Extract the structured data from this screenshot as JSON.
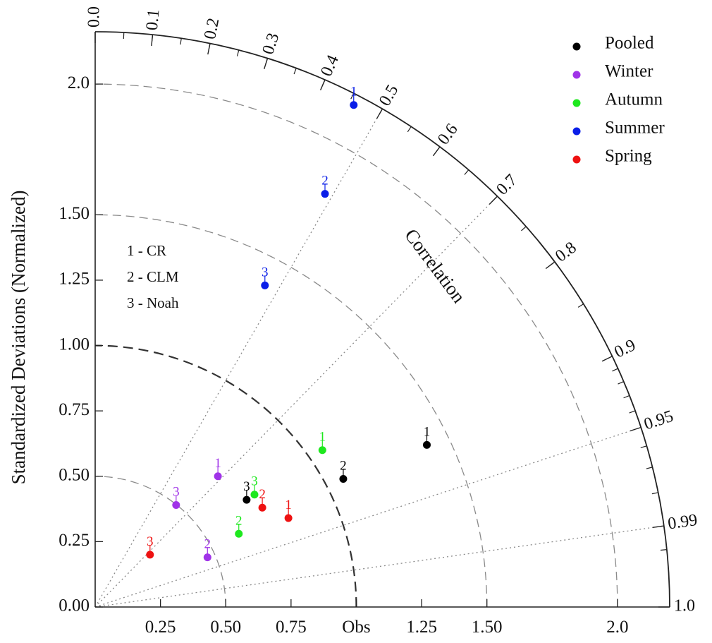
{
  "chart_data": {
    "type": "scatter",
    "subtype": "taylor-diagram",
    "ylabel": "Standardized Deviations (Normalized)",
    "arc_label": "Correlation",
    "std_ticks_left": [
      "0.00",
      "0.25",
      "0.50",
      "0.75",
      "1.00",
      "1.25",
      "1.50",
      "2.0"
    ],
    "std_ticks_bottom": [
      "0.25",
      "0.50",
      "0.75",
      "Obs",
      "1.25",
      "1.50",
      "2.0"
    ],
    "std_range": [
      0,
      2.2
    ],
    "reference_std_label": "Obs",
    "correlation_ticks": [
      "0.0",
      "0.1",
      "0.2",
      "0.3",
      "0.4",
      "0.5",
      "0.6",
      "0.7",
      "0.8",
      "0.9",
      "0.95",
      "0.99",
      "1.0"
    ],
    "std_arcs": [
      0.5,
      1.5,
      2.0
    ],
    "reference_arc": 1.0,
    "correlation_rays": [
      0.5,
      0.7,
      0.95,
      0.99
    ],
    "models_key": [
      "1 - CR",
      "2 - CLM",
      "3 - Noah"
    ],
    "legend": [
      {
        "name": "Pooled",
        "color": "#000000"
      },
      {
        "name": "Winter",
        "color": "#a033e8"
      },
      {
        "name": "Autumn",
        "color": "#1ee81e"
      },
      {
        "name": "Summer",
        "color": "#0a1ee8"
      },
      {
        "name": "Spring",
        "color": "#ee1111"
      }
    ],
    "series": [
      {
        "name": "Pooled",
        "color": "#000000",
        "points": [
          {
            "label": "1",
            "x": 1.27,
            "y": 0.62
          },
          {
            "label": "2",
            "x": 0.95,
            "y": 0.49
          },
          {
            "label": "3",
            "x": 0.58,
            "y": 0.41
          }
        ]
      },
      {
        "name": "Winter",
        "color": "#a033e8",
        "points": [
          {
            "label": "1",
            "x": 0.47,
            "y": 0.5
          },
          {
            "label": "2",
            "x": 0.43,
            "y": 0.19
          },
          {
            "label": "3",
            "x": 0.31,
            "y": 0.39
          }
        ]
      },
      {
        "name": "Autumn",
        "color": "#1ee81e",
        "points": [
          {
            "label": "1",
            "x": 0.87,
            "y": 0.6
          },
          {
            "label": "2",
            "x": 0.55,
            "y": 0.28
          },
          {
            "label": "3",
            "x": 0.61,
            "y": 0.43
          }
        ]
      },
      {
        "name": "Summer",
        "color": "#0a1ee8",
        "points": [
          {
            "label": "1",
            "x": 0.99,
            "y": 1.92
          },
          {
            "label": "2",
            "x": 0.88,
            "y": 1.58
          },
          {
            "label": "3",
            "x": 0.65,
            "y": 1.23
          }
        ]
      },
      {
        "name": "Spring",
        "color": "#ee1111",
        "points": [
          {
            "label": "1",
            "x": 0.74,
            "y": 0.34
          },
          {
            "label": "2",
            "x": 0.64,
            "y": 0.38
          },
          {
            "label": "3",
            "x": 0.21,
            "y": 0.2
          }
        ]
      }
    ]
  }
}
